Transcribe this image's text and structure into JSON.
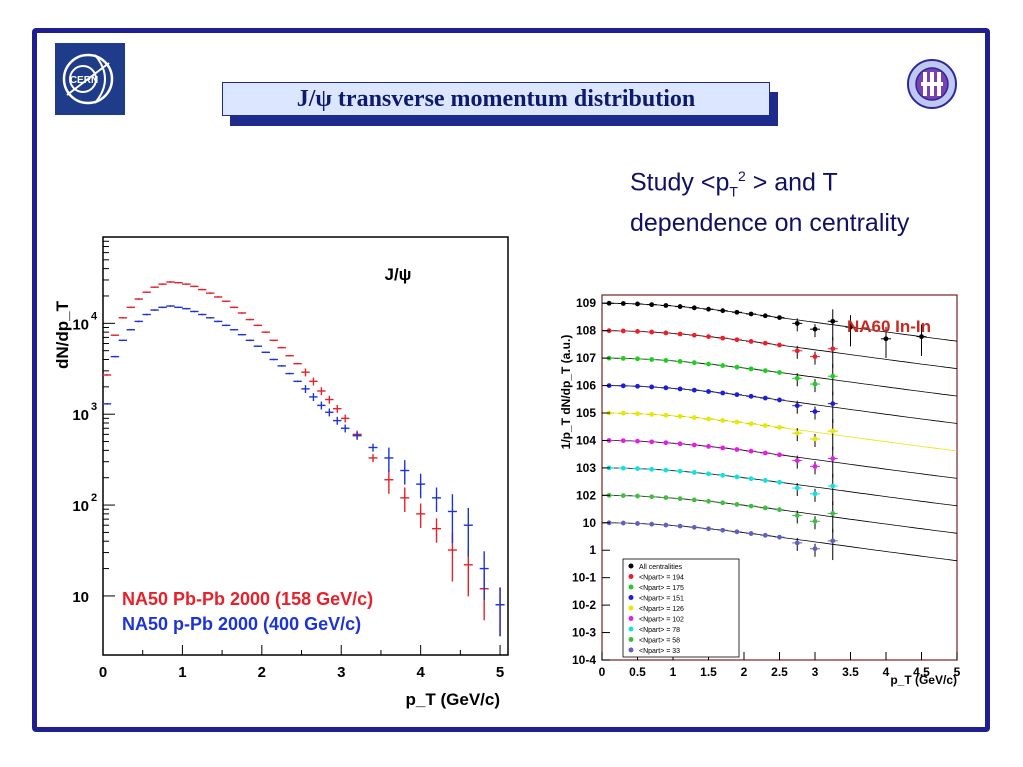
{
  "title": "J/ψ transverse momentum distribution",
  "study_text": {
    "pre": "Study <p",
    "sub": "T",
    "sup": "2",
    "post": "> and T dependence on centrality"
  },
  "logos": {
    "left": "CERN",
    "right": "NA60"
  },
  "chart_data": [
    {
      "type": "scatter",
      "title": "J/ψ",
      "xlabel": "p_T (GeV/c)",
      "ylabel": "dN/dp_T",
      "xlim": [
        0,
        5.1
      ],
      "ylim_log10": [
        0.35,
        4.95
      ],
      "log_y": true,
      "x_ticks": [
        "0",
        "1",
        "2",
        "3",
        "4",
        "5"
      ],
      "y_ticks": [
        "10",
        "10 2",
        "10 3",
        "10 4"
      ],
      "series": [
        {
          "name": "NA50 Pb-Pb 2000 (158 GeV/c)",
          "color": "#e8202a",
          "points": [
            [
              0.05,
              2700
            ],
            [
              0.15,
              7400
            ],
            [
              0.25,
              11500
            ],
            [
              0.35,
              15000
            ],
            [
              0.45,
              18500
            ],
            [
              0.55,
              22000
            ],
            [
              0.65,
              25000
            ],
            [
              0.75,
              27000
            ],
            [
              0.85,
              28500
            ],
            [
              0.95,
              28000
            ],
            [
              1.05,
              27000
            ],
            [
              1.15,
              25500
            ],
            [
              1.25,
              23500
            ],
            [
              1.35,
              21500
            ],
            [
              1.45,
              19500
            ],
            [
              1.55,
              17500
            ],
            [
              1.65,
              15000
            ],
            [
              1.75,
              13000
            ],
            [
              1.85,
              11000
            ],
            [
              1.95,
              9500
            ],
            [
              2.05,
              8000
            ],
            [
              2.15,
              6500
            ],
            [
              2.25,
              5400
            ],
            [
              2.35,
              4400
            ],
            [
              2.45,
              3600
            ],
            [
              2.55,
              2900
            ],
            [
              2.65,
              2300
            ],
            [
              2.75,
              1800
            ],
            [
              2.85,
              1450
            ],
            [
              2.95,
              1150
            ],
            [
              3.05,
              900
            ],
            [
              3.2,
              600
            ],
            [
              3.4,
              330
            ],
            [
              3.6,
              190
            ],
            [
              3.8,
              120
            ],
            [
              4.0,
              80
            ],
            [
              4.2,
              55
            ],
            [
              4.4,
              32
            ],
            [
              4.6,
              22
            ],
            [
              4.8,
              12
            ],
            [
              5.0,
              8
            ]
          ]
        },
        {
          "name": "NA50 p-Pb 2000 (400 GeV/c)",
          "color": "#1c34d6",
          "points": [
            [
              0.05,
              1300
            ],
            [
              0.15,
              4300
            ],
            [
              0.25,
              6500
            ],
            [
              0.35,
              8500
            ],
            [
              0.45,
              10500
            ],
            [
              0.55,
              12500
            ],
            [
              0.65,
              14000
            ],
            [
              0.75,
              15000
            ],
            [
              0.85,
              15500
            ],
            [
              0.95,
              15000
            ],
            [
              1.05,
              14500
            ],
            [
              1.15,
              13500
            ],
            [
              1.25,
              12500
            ],
            [
              1.35,
              11500
            ],
            [
              1.45,
              10500
            ],
            [
              1.55,
              9500
            ],
            [
              1.65,
              8500
            ],
            [
              1.75,
              7500
            ],
            [
              1.85,
              6500
            ],
            [
              1.95,
              5600
            ],
            [
              2.05,
              4800
            ],
            [
              2.15,
              4000
            ],
            [
              2.25,
              3400
            ],
            [
              2.35,
              2800
            ],
            [
              2.45,
              2300
            ],
            [
              2.55,
              1900
            ],
            [
              2.65,
              1550
            ],
            [
              2.75,
              1250
            ],
            [
              2.85,
              1050
            ],
            [
              2.95,
              850
            ],
            [
              3.05,
              700
            ],
            [
              3.2,
              580
            ],
            [
              3.4,
              430
            ],
            [
              3.6,
              330
            ],
            [
              3.8,
              240
            ],
            [
              4.0,
              170
            ],
            [
              4.2,
              120
            ],
            [
              4.4,
              85
            ],
            [
              4.6,
              60
            ],
            [
              4.8,
              20
            ],
            [
              5.0,
              8
            ]
          ]
        }
      ]
    },
    {
      "type": "scatter",
      "title": "NA60 In-In",
      "xlabel": "p_T (GeV/c)",
      "ylabel": "1/p_T dN/dp_T (a.u.)",
      "xlim": [
        0,
        5
      ],
      "ylim_log10": [
        -4,
        9.3
      ],
      "log_y": true,
      "x_ticks": [
        "0",
        "0.5",
        "1",
        "1.5",
        "2",
        "2.5",
        "3",
        "3.5",
        "4",
        "4.5",
        "5"
      ],
      "y_ticks": [
        "10-4",
        "10-3",
        "10-2",
        "10-1",
        "1",
        "10",
        "102",
        "103",
        "104",
        "105",
        "106",
        "107",
        "108",
        "109"
      ],
      "legend_position": "bottom-left",
      "series": [
        {
          "name": "All centralities",
          "color": "#000000",
          "amp_log10": 9
        },
        {
          "name": "<Npart> = 194",
          "color": "#e8202a",
          "amp_log10": 8
        },
        {
          "name": "<Npart> = 175",
          "color": "#22cc22",
          "amp_log10": 7
        },
        {
          "name": "<Npart> = 151",
          "color": "#1c1cdd",
          "amp_log10": 6
        },
        {
          "name": "<Npart> = 126",
          "color": "#e8e800",
          "amp_log10": 5
        },
        {
          "name": "<Npart> = 102",
          "color": "#e020e0",
          "amp_log10": 4
        },
        {
          "name": "<Npart> = 78",
          "color": "#14e0e0",
          "amp_log10": 3
        },
        {
          "name": "<Npart> = 58",
          "color": "#44bb44",
          "amp_log10": 2
        },
        {
          "name": "<Npart> = 33",
          "color": "#6060c0",
          "amp_log10": 1
        }
      ]
    }
  ]
}
